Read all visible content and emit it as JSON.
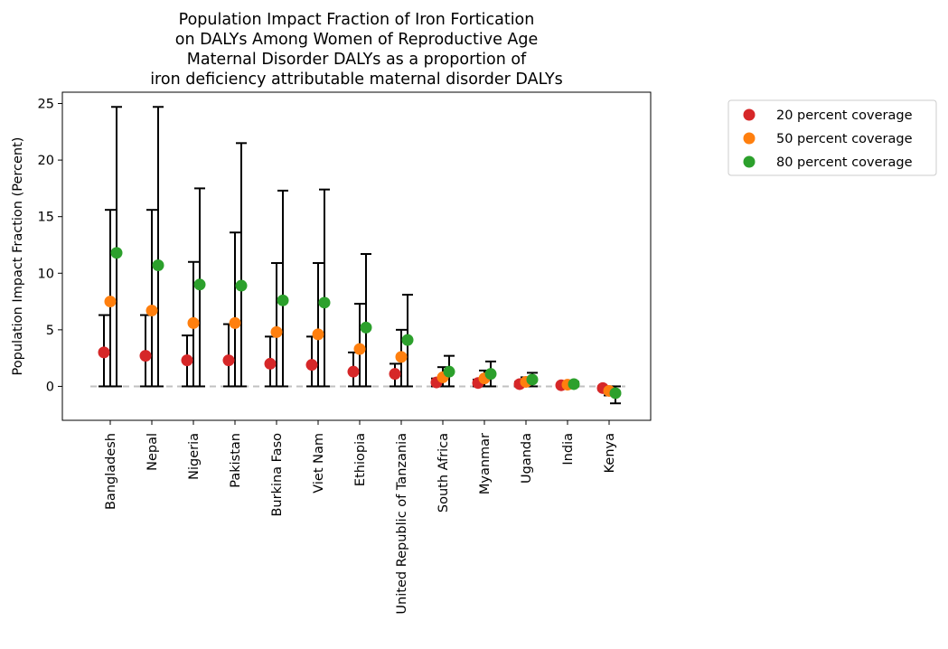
{
  "chart_data": {
    "type": "scatter",
    "title_lines": [
      "Population Impact Fraction of Iron Fortication",
      "on DALYs Among Women of Reproductive Age",
      "Maternal Disorder DALYs as a proportion of",
      "iron deficiency attributable maternal disorder DALYs"
    ],
    "xlabel": "",
    "ylabel": "Population Impact Fraction (Percent)",
    "ylim": [
      -3,
      26
    ],
    "yticks": [
      0,
      5,
      10,
      15,
      20,
      25
    ],
    "grid": false,
    "legend_position": "outside-top-right",
    "baseline": 0,
    "categories": [
      "Bangladesh",
      "Nepal",
      "Nigeria",
      "Pakistan",
      "Burkina Faso",
      "Viet Nam",
      "Ethiopia",
      "United Republic of Tanzania",
      "South Africa",
      "Myanmar",
      "Uganda",
      "India",
      "Kenya"
    ],
    "series": [
      {
        "name": "20 percent coverage",
        "color": "#d62728",
        "values": [
          3.0,
          2.7,
          2.3,
          2.3,
          2.0,
          1.9,
          1.3,
          1.1,
          0.35,
          0.3,
          0.2,
          0.1,
          -0.15
        ],
        "lower": [
          0.0,
          0.0,
          0.0,
          0.0,
          0.0,
          0.0,
          0.0,
          0.0,
          0.0,
          0.0,
          0.0,
          0.0,
          -0.3
        ],
        "upper": [
          6.3,
          6.3,
          4.5,
          5.5,
          4.4,
          4.4,
          3.0,
          2.0,
          0.7,
          0.6,
          0.4,
          0.2,
          0.0
        ]
      },
      {
        "name": "50 percent coverage",
        "color": "#ff7f0e",
        "values": [
          7.5,
          6.7,
          5.6,
          5.6,
          4.8,
          4.6,
          3.3,
          2.6,
          0.8,
          0.7,
          0.4,
          0.15,
          -0.4
        ],
        "lower": [
          0.0,
          0.0,
          0.0,
          0.0,
          0.0,
          0.0,
          0.0,
          0.0,
          0.0,
          0.0,
          0.0,
          0.0,
          -0.8
        ],
        "upper": [
          15.6,
          15.6,
          11.0,
          13.6,
          10.9,
          10.9,
          7.3,
          5.0,
          1.7,
          1.4,
          0.8,
          0.3,
          0.0
        ]
      },
      {
        "name": "80 percent coverage",
        "color": "#2ca02c",
        "values": [
          11.8,
          10.7,
          9.0,
          8.9,
          7.6,
          7.4,
          5.2,
          4.1,
          1.3,
          1.1,
          0.6,
          0.2,
          -0.6
        ],
        "lower": [
          0.0,
          0.0,
          0.0,
          0.0,
          0.0,
          0.0,
          0.0,
          0.0,
          0.0,
          0.0,
          0.0,
          0.0,
          -1.5
        ],
        "upper": [
          24.7,
          24.7,
          17.5,
          21.5,
          17.3,
          17.4,
          11.7,
          8.1,
          2.7,
          2.2,
          1.2,
          0.4,
          0.0
        ]
      }
    ]
  }
}
